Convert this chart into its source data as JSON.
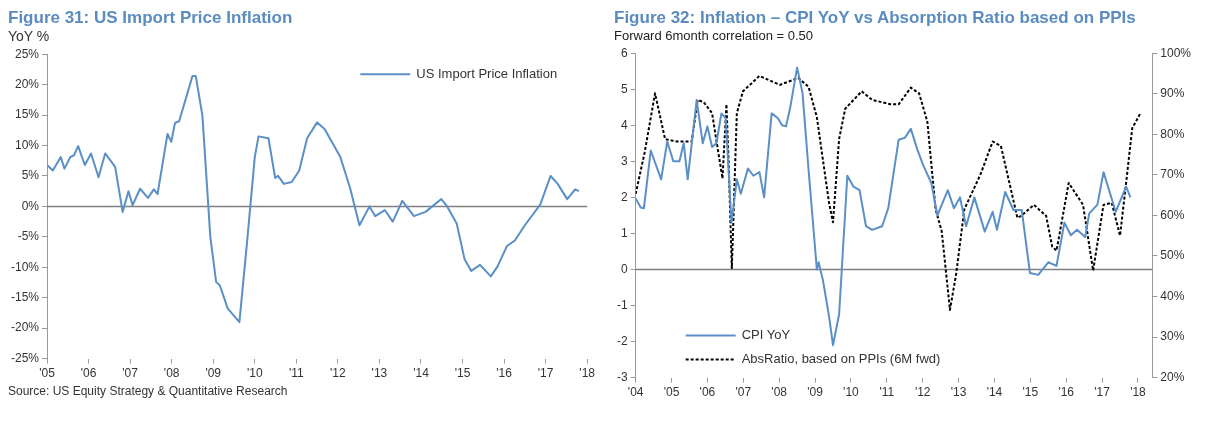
{
  "chart_data": [
    {
      "type": "line",
      "title": "Figure 31: US Import Price Inflation",
      "ylabel": "YoY %",
      "xlim": [
        2005,
        2018
      ],
      "xticks": [
        {
          "value": 2005,
          "label": "'05"
        },
        {
          "value": 2006,
          "label": "'06"
        },
        {
          "value": 2007,
          "label": "'07"
        },
        {
          "value": 2008,
          "label": "'08"
        },
        {
          "value": 2009,
          "label": "'09"
        },
        {
          "value": 2010,
          "label": "'10"
        },
        {
          "value": 2011,
          "label": "'11"
        },
        {
          "value": 2012,
          "label": "'12"
        },
        {
          "value": 2013,
          "label": "'13"
        },
        {
          "value": 2014,
          "label": "'14"
        },
        {
          "value": 2015,
          "label": "'15"
        },
        {
          "value": 2016,
          "label": "'16"
        },
        {
          "value": 2017,
          "label": "'17"
        },
        {
          "value": 2018,
          "label": "'18"
        }
      ],
      "ylim": [
        -25,
        25
      ],
      "yticks": [
        {
          "value": -25,
          "label": "-25%"
        },
        {
          "value": -20,
          "label": "-20%"
        },
        {
          "value": -15,
          "label": "-15%"
        },
        {
          "value": -10,
          "label": "-10%"
        },
        {
          "value": -5,
          "label": "-5%"
        },
        {
          "value": 0,
          "label": "0%"
        },
        {
          "value": 5,
          "label": "5%"
        },
        {
          "value": 10,
          "label": "10%"
        },
        {
          "value": 15,
          "label": "15%"
        },
        {
          "value": 20,
          "label": "20%"
        },
        {
          "value": 25,
          "label": "25%"
        }
      ],
      "grid": false,
      "legend": "top right",
      "marker": "none",
      "ref_lines": [
        {
          "axis": "y",
          "value": 0,
          "color": "#808080"
        }
      ],
      "annotations": [
        "Source: US Equity Strategy & Quantitative Research"
      ],
      "series": [
        {
          "name": "US Import Price Inflation",
          "color": "#5b8fc7",
          "line_style": "solid",
          "x": [
            2005.0,
            2005.14,
            2005.33,
            2005.42,
            2005.56,
            2005.65,
            2005.75,
            2005.91,
            2006.06,
            2006.24,
            2006.4,
            2006.64,
            2006.82,
            2006.96,
            2007.06,
            2007.24,
            2007.43,
            2007.57,
            2007.66,
            2007.9,
            2007.99,
            2008.08,
            2008.18,
            2008.5,
            2008.58,
            2008.74,
            2008.93,
            2009.07,
            2009.16,
            2009.35,
            2009.58,
            2009.63,
            2009.81,
            2010.0,
            2010.09,
            2010.33,
            2010.49,
            2010.56,
            2010.7,
            2010.89,
            2011.07,
            2011.26,
            2011.5,
            2011.68,
            2012.06,
            2012.29,
            2012.52,
            2012.76,
            2012.9,
            2013.13,
            2013.32,
            2013.55,
            2013.83,
            2014.11,
            2014.49,
            2014.63,
            2014.86,
            2015.05,
            2015.21,
            2015.42,
            2015.68,
            2015.84,
            2016.07,
            2016.26,
            2016.5,
            2016.87,
            2017.12,
            2017.29,
            2017.52,
            2017.71,
            2017.8
          ],
          "values": [
            6.8,
            5.9,
            8.1,
            6.2,
            8.1,
            8.4,
            9.9,
            6.8,
            8.7,
            4.8,
            8.7,
            6.5,
            -0.9,
            2.5,
            0.2,
            2.9,
            1.4,
            2.8,
            2,
            11.9,
            10.6,
            13.7,
            14,
            21.4,
            21.4,
            14.9,
            -5,
            -12.4,
            -13,
            -16.8,
            -18.6,
            -19,
            -6.2,
            8.1,
            11.5,
            11.2,
            4.7,
            5,
            3.7,
            4,
            5.9,
            11.2,
            13.8,
            12.7,
            8.1,
            3.1,
            -3.1,
            0,
            -1.6,
            -0.6,
            -2.5,
            0.9,
            -1.6,
            -0.9,
            1.2,
            0,
            -2.8,
            -8.7,
            -10.6,
            -9.6,
            -11.5,
            -9.9,
            -6.5,
            -5.6,
            -3.1,
            0.3,
            5,
            3.7,
            1.2,
            2.8,
            2.5
          ]
        }
      ]
    },
    {
      "type": "line",
      "title": "Figure 32:  Inflation – CPI YoY vs Absorption Ratio based on PPIs",
      "subtitle": "Forward 6month correlation = 0.50",
      "xlim": [
        2004,
        2018.4
      ],
      "xticks": [
        {
          "value": 2004,
          "label": "'04"
        },
        {
          "value": 2005,
          "label": "'05"
        },
        {
          "value": 2006,
          "label": "'06"
        },
        {
          "value": 2007,
          "label": "'07"
        },
        {
          "value": 2008,
          "label": "'08"
        },
        {
          "value": 2009,
          "label": "'09"
        },
        {
          "value": 2010,
          "label": "'10"
        },
        {
          "value": 2011,
          "label": "'11"
        },
        {
          "value": 2012,
          "label": "'12"
        },
        {
          "value": 2013,
          "label": "'13"
        },
        {
          "value": 2014,
          "label": "'14"
        },
        {
          "value": 2015,
          "label": "'15"
        },
        {
          "value": 2016,
          "label": "'16"
        },
        {
          "value": 2017,
          "label": "'17"
        },
        {
          "value": 2018,
          "label": "'18"
        }
      ],
      "ylim": [
        -3,
        6
      ],
      "yticks": [
        -3,
        -2,
        -1,
        0,
        1,
        2,
        3,
        4,
        5,
        6
      ],
      "y2lim": [
        20,
        100
      ],
      "y2ticks": [
        {
          "value": 20,
          "label": "20%"
        },
        {
          "value": 30,
          "label": "30%"
        },
        {
          "value": 40,
          "label": "40%"
        },
        {
          "value": 50,
          "label": "50%"
        },
        {
          "value": 60,
          "label": "60%"
        },
        {
          "value": 70,
          "label": "70%"
        },
        {
          "value": 80,
          "label": "80%"
        },
        {
          "value": 90,
          "label": "90%"
        },
        {
          "value": 100,
          "label": "100%"
        }
      ],
      "grid": false,
      "legend": "bottom left",
      "marker": "none",
      "ref_lines": [
        {
          "axis": "y",
          "value": 0,
          "color": "#808080"
        }
      ],
      "series": [
        {
          "name": "CPI YoY",
          "color": "#5b8fc7",
          "line_style": "solid",
          "x": [
            2004.0,
            2004.14,
            2004.23,
            2004.42,
            2004.71,
            2004.88,
            2005.05,
            2005.22,
            2005.34,
            2005.45,
            2005.7,
            2005.87,
            2006.0,
            2006.13,
            2006.25,
            2006.39,
            2006.51,
            2006.67,
            2006.82,
            2006.93,
            2007.13,
            2007.28,
            2007.45,
            2007.58,
            2007.79,
            2007.96,
            2008.08,
            2008.19,
            2008.3,
            2008.5,
            2008.65,
            2008.82,
            2009.05,
            2009.1,
            2009.22,
            2009.39,
            2009.5,
            2009.67,
            2009.9,
            2010.07,
            2010.24,
            2010.42,
            2010.59,
            2010.87,
            2011.04,
            2011.33,
            2011.5,
            2011.67,
            2011.84,
            2012.01,
            2012.24,
            2012.41,
            2012.7,
            2012.87,
            2013.04,
            2013.21,
            2013.44,
            2013.73,
            2013.95,
            2014.07,
            2014.3,
            2014.53,
            2014.76,
            2014.99,
            2015.22,
            2015.5,
            2015.73,
            2015.95,
            2016.13,
            2016.3,
            2016.53,
            2016.64,
            2016.87,
            2017.04,
            2017.38,
            2017.67,
            2017.79
          ],
          "values": [
            1.97,
            1.72,
            1.7,
            3.3,
            2.5,
            3.55,
            3.0,
            3.0,
            3.5,
            2.5,
            4.7,
            3.5,
            3.97,
            3.4,
            3.5,
            4.33,
            4.2,
            1.3,
            2.5,
            2.1,
            2.8,
            2.6,
            2.7,
            2.0,
            4.33,
            4.2,
            4.0,
            3.97,
            4.45,
            5.6,
            4.9,
            2.75,
            0,
            0.2,
            -0.3,
            -1.3,
            -2.1,
            -1.25,
            2.6,
            2.3,
            2.2,
            1.2,
            1.1,
            1.2,
            1.7,
            3.6,
            3.65,
            3.9,
            3.36,
            2.9,
            2.4,
            1.5,
            2.2,
            1.7,
            2.0,
            1.2,
            2.0,
            1.05,
            1.6,
            1.1,
            2.15,
            1.65,
            1.65,
            -0.1,
            -0.15,
            0.2,
            0.1,
            1.3,
            0.95,
            1.1,
            0.9,
            1.55,
            1.8,
            2.7,
            1.6,
            2.3,
            2.0
          ]
        },
        {
          "name": "AbsRatio, based on PPIs (6M fwd)",
          "color": "#000000",
          "line_style": "dotted",
          "axis": "y2",
          "x": [
            2004.0,
            2004.25,
            2004.54,
            2004.82,
            2005.16,
            2005.56,
            2005.73,
            2005.9,
            2006.13,
            2006.42,
            2006.53,
            2006.59,
            2006.68,
            2006.82,
            2006.99,
            2007.45,
            2008.02,
            2008.53,
            2008.82,
            2009.05,
            2009.39,
            2009.5,
            2009.67,
            2009.84,
            2010.3,
            2010.59,
            2011.1,
            2011.33,
            2011.67,
            2011.9,
            2012.13,
            2012.36,
            2012.53,
            2012.76,
            2012.93,
            2013.16,
            2013.61,
            2013.95,
            2014.18,
            2014.64,
            2014.75,
            2015.1,
            2015.44,
            2015.61,
            2015.73,
            2016.07,
            2016.47,
            2016.75,
            2017.04,
            2017.27,
            2017.5,
            2017.67,
            2017.84,
            2018.07
          ],
          "values": [
            65.3,
            75.5,
            90.1,
            78.8,
            78.2,
            78.2,
            88.5,
            87.9,
            85.2,
            69.1,
            87.4,
            73.4,
            47,
            85.2,
            90.6,
            94.4,
            92.2,
            93.9,
            91.7,
            84.2,
            63.1,
            58.3,
            78.8,
            86.3,
            90.6,
            88.5,
            87.4,
            87.4,
            91.5,
            90.1,
            83.1,
            61.5,
            56.1,
            36.7,
            45.4,
            61.5,
            70.1,
            78.2,
            77.1,
            59.4,
            59.9,
            62.6,
            59.9,
            52.3,
            51.3,
            68,
            62.6,
            46.4,
            62.6,
            63.1,
            55,
            68,
            81.5,
            85.2
          ]
        }
      ]
    }
  ]
}
